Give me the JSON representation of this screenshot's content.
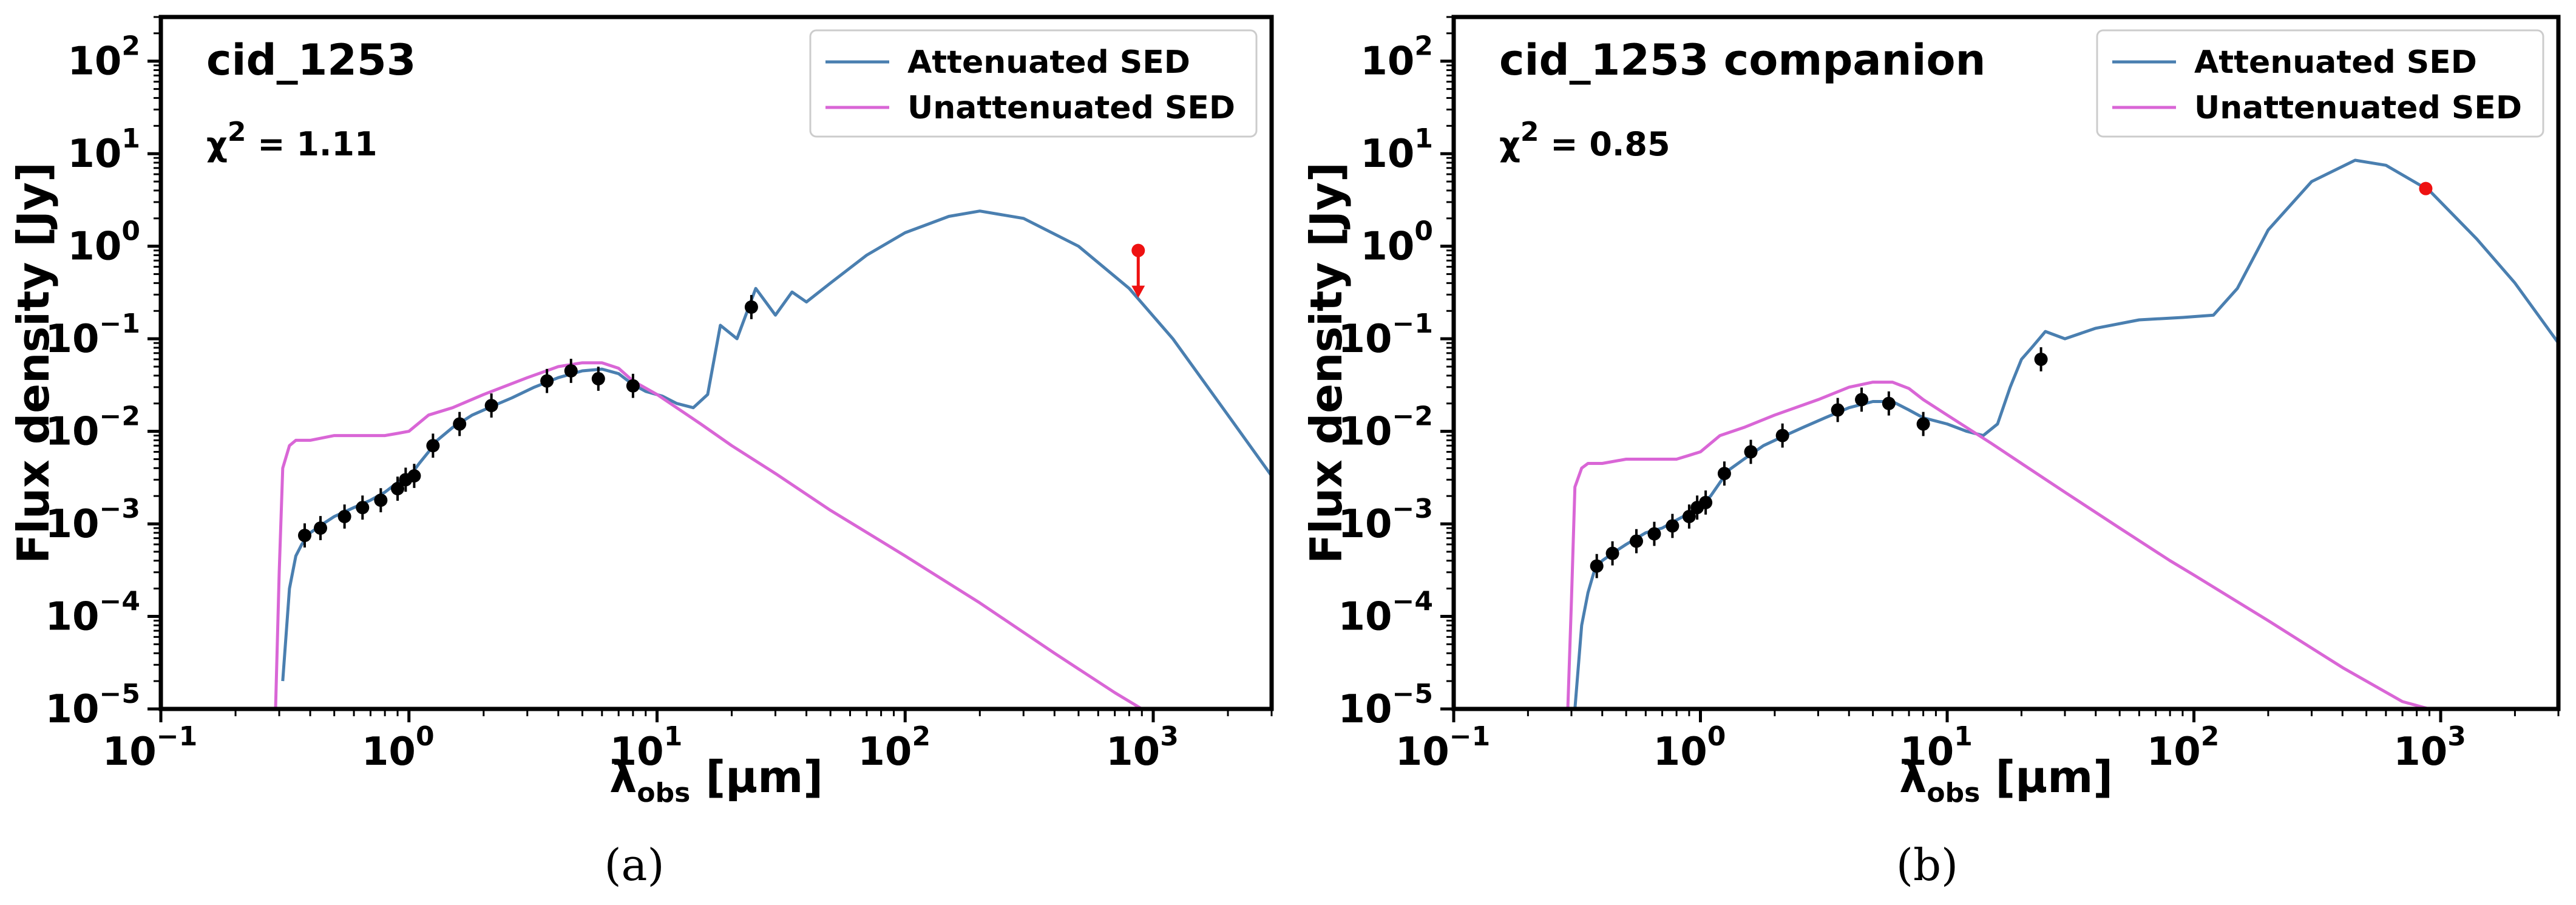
{
  "colors": {
    "attenuated": "#4a7fb0",
    "unattenuated": "#d966d6",
    "photometry": "#000000",
    "highlight": "#ee1111"
  },
  "chart_data": [
    {
      "type": "line",
      "panel_label": "(a)",
      "title": "cid_1253",
      "chi_label": "χ",
      "chi_exp": "2",
      "chi_value": "= 1.11",
      "xlabel_main": "λ",
      "xlabel_sub": "obs",
      "xlabel_units": " [μm]",
      "ylabel": "Flux density [Jy]",
      "x_scale": "log",
      "y_scale": "log",
      "xlim": [
        0.1,
        3000
      ],
      "ylim": [
        1e-05,
        300
      ],
      "x_ticks": [
        {
          "base": "10",
          "exp": "−1",
          "value": 0.1
        },
        {
          "base": "10",
          "exp": "0",
          "value": 1
        },
        {
          "base": "10",
          "exp": "1",
          "value": 10
        },
        {
          "base": "10",
          "exp": "2",
          "value": 100
        },
        {
          "base": "10",
          "exp": "3",
          "value": 1000
        }
      ],
      "y_ticks": [
        {
          "base": "10",
          "exp": "−5",
          "value": 1e-05
        },
        {
          "base": "10",
          "exp": "−4",
          "value": 0.0001
        },
        {
          "base": "10",
          "exp": "−3",
          "value": 0.001
        },
        {
          "base": "10",
          "exp": "−2",
          "value": 0.01
        },
        {
          "base": "10",
          "exp": "−1",
          "value": 0.1
        },
        {
          "base": "10",
          "exp": "0",
          "value": 1
        },
        {
          "base": "10",
          "exp": "1",
          "value": 10
        },
        {
          "base": "10",
          "exp": "2",
          "value": 100
        }
      ],
      "legend": [
        "Attenuated SED",
        "Unattenuated SED"
      ],
      "legend_position": "top-right",
      "series": [
        {
          "name": "Attenuated SED",
          "x": [
            0.31,
            0.33,
            0.35,
            0.37,
            0.4,
            0.45,
            0.5,
            0.6,
            0.7,
            0.8,
            0.9,
            1.0,
            1.1,
            1.2,
            1.3,
            1.5,
            1.8,
            2.2,
            2.6,
            3.2,
            4.0,
            5.0,
            6.0,
            7.0,
            8.0,
            9.0,
            10.5,
            12.0,
            14.0,
            16.0,
            18.0,
            21.0,
            25.0,
            30.0,
            35.0,
            40.0,
            50.0,
            70.0,
            100.0,
            150.0,
            200.0,
            300.0,
            500.0,
            800.0,
            1200.0,
            2000.0,
            3000.0
          ],
          "y": [
            2e-05,
            0.0002,
            0.00045,
            0.0006,
            0.0008,
            0.001,
            0.0012,
            0.0015,
            0.0018,
            0.0022,
            0.0028,
            0.0032,
            0.0045,
            0.006,
            0.008,
            0.011,
            0.015,
            0.019,
            0.023,
            0.03,
            0.038,
            0.045,
            0.047,
            0.042,
            0.032,
            0.027,
            0.024,
            0.02,
            0.018,
            0.025,
            0.14,
            0.1,
            0.35,
            0.18,
            0.32,
            0.25,
            0.4,
            0.8,
            1.4,
            2.1,
            2.4,
            2.0,
            1.0,
            0.35,
            0.1,
            0.015,
            0.0033
          ]
        },
        {
          "name": "Unattenuated SED",
          "x": [
            0.29,
            0.3,
            0.31,
            0.33,
            0.35,
            0.4,
            0.5,
            0.6,
            0.7,
            0.8,
            0.9,
            1.0,
            1.2,
            1.5,
            2.0,
            3.0,
            4.0,
            5.0,
            6.0,
            7.0,
            8.0,
            10.0,
            15.0,
            20.0,
            30.0,
            50.0,
            80.0,
            100.0,
            200.0,
            400.0,
            700.0,
            900.0
          ],
          "y": [
            1e-05,
            0.0003,
            0.004,
            0.007,
            0.008,
            0.008,
            0.009,
            0.009,
            0.009,
            0.009,
            0.0095,
            0.01,
            0.015,
            0.018,
            0.025,
            0.038,
            0.05,
            0.055,
            0.055,
            0.048,
            0.035,
            0.025,
            0.012,
            0.007,
            0.0035,
            0.0014,
            0.00065,
            0.00045,
            0.00014,
            4e-05,
            1.5e-05,
            1e-05
          ]
        }
      ],
      "photometry": {
        "x": [
          0.38,
          0.44,
          0.55,
          0.65,
          0.77,
          0.9,
          0.97,
          1.05,
          1.25,
          1.6,
          2.15,
          3.6,
          4.5,
          5.8,
          8.0,
          24.0
        ],
        "y": [
          0.00075,
          0.0009,
          0.0012,
          0.0015,
          0.0018,
          0.0024,
          0.003,
          0.0033,
          0.007,
          0.012,
          0.019,
          0.035,
          0.045,
          0.037,
          0.031,
          0.22
        ]
      },
      "highlight_points": [
        {
          "x": 870,
          "y": 0.9,
          "upper_limit": true
        }
      ]
    },
    {
      "type": "line",
      "panel_label": "(b)",
      "title": "cid_1253 companion",
      "chi_label": "χ",
      "chi_exp": "2",
      "chi_value": "= 0.85",
      "xlabel_main": "λ",
      "xlabel_sub": "obs",
      "xlabel_units": " [μm]",
      "ylabel": "Flux density [Jy]",
      "x_scale": "log",
      "y_scale": "log",
      "xlim": [
        0.1,
        3000
      ],
      "ylim": [
        1e-05,
        300
      ],
      "x_ticks": [
        {
          "base": "10",
          "exp": "−1",
          "value": 0.1
        },
        {
          "base": "10",
          "exp": "0",
          "value": 1
        },
        {
          "base": "10",
          "exp": "1",
          "value": 10
        },
        {
          "base": "10",
          "exp": "2",
          "value": 100
        },
        {
          "base": "10",
          "exp": "3",
          "value": 1000
        }
      ],
      "y_ticks": [
        {
          "base": "10",
          "exp": "−5",
          "value": 1e-05
        },
        {
          "base": "10",
          "exp": "−4",
          "value": 0.0001
        },
        {
          "base": "10",
          "exp": "−3",
          "value": 0.001
        },
        {
          "base": "10",
          "exp": "−2",
          "value": 0.01
        },
        {
          "base": "10",
          "exp": "−1",
          "value": 0.1
        },
        {
          "base": "10",
          "exp": "0",
          "value": 1
        },
        {
          "base": "10",
          "exp": "1",
          "value": 10
        },
        {
          "base": "10",
          "exp": "2",
          "value": 100
        }
      ],
      "legend": [
        "Attenuated SED",
        "Unattenuated SED"
      ],
      "legend_position": "top-right",
      "series": [
        {
          "name": "Attenuated SED",
          "x": [
            0.31,
            0.33,
            0.35,
            0.37,
            0.4,
            0.45,
            0.5,
            0.6,
            0.7,
            0.8,
            0.9,
            1.0,
            1.1,
            1.2,
            1.3,
            1.5,
            1.8,
            2.2,
            2.6,
            3.2,
            4.0,
            5.0,
            6.0,
            7.0,
            8.0,
            10.0,
            12.0,
            14.0,
            16.0,
            18.0,
            20.0,
            22.0,
            25.0,
            30.0,
            40.0,
            60.0,
            90.0,
            120.0,
            150.0,
            200.0,
            300.0,
            450.0,
            600.0,
            900.0,
            1400.0,
            2000.0,
            3000.0
          ],
          "y": [
            1e-05,
            8e-05,
            0.00018,
            0.0003,
            0.0004,
            0.0005,
            0.0006,
            0.0008,
            0.0009,
            0.0011,
            0.0013,
            0.0016,
            0.002,
            0.0028,
            0.0038,
            0.005,
            0.007,
            0.009,
            0.011,
            0.014,
            0.018,
            0.021,
            0.021,
            0.017,
            0.014,
            0.012,
            0.01,
            0.009,
            0.012,
            0.03,
            0.06,
            0.08,
            0.12,
            0.1,
            0.13,
            0.16,
            0.17,
            0.18,
            0.35,
            1.5,
            5.0,
            8.5,
            7.5,
            4.0,
            1.2,
            0.4,
            0.09
          ]
        },
        {
          "name": "Unattenuated SED",
          "x": [
            0.29,
            0.3,
            0.31,
            0.33,
            0.35,
            0.4,
            0.5,
            0.6,
            0.7,
            0.8,
            0.9,
            1.0,
            1.2,
            1.5,
            2.0,
            3.0,
            4.0,
            5.0,
            6.0,
            7.0,
            8.0,
            10.0,
            15.0,
            20.0,
            30.0,
            50.0,
            80.0,
            100.0,
            200.0,
            400.0,
            700.0,
            900.0
          ],
          "y": [
            1e-05,
            0.00015,
            0.0025,
            0.004,
            0.0045,
            0.0045,
            0.005,
            0.005,
            0.005,
            0.005,
            0.0055,
            0.006,
            0.009,
            0.011,
            0.015,
            0.022,
            0.03,
            0.034,
            0.034,
            0.029,
            0.022,
            0.015,
            0.0075,
            0.0045,
            0.0022,
            0.0009,
            0.0004,
            0.00028,
            9e-05,
            2.8e-05,
            1.2e-05,
            1e-05
          ]
        }
      ],
      "photometry": {
        "x": [
          0.38,
          0.44,
          0.55,
          0.65,
          0.77,
          0.9,
          0.97,
          1.05,
          1.25,
          1.6,
          2.15,
          3.6,
          4.5,
          5.8,
          8.0,
          24.0
        ],
        "y": [
          0.00035,
          0.00048,
          0.00065,
          0.00078,
          0.00095,
          0.0012,
          0.0015,
          0.0017,
          0.0035,
          0.006,
          0.009,
          0.017,
          0.022,
          0.02,
          0.012,
          0.06
        ]
      },
      "highlight_points": [
        {
          "x": 870,
          "y": 4.2,
          "upper_limit": false
        }
      ]
    }
  ]
}
